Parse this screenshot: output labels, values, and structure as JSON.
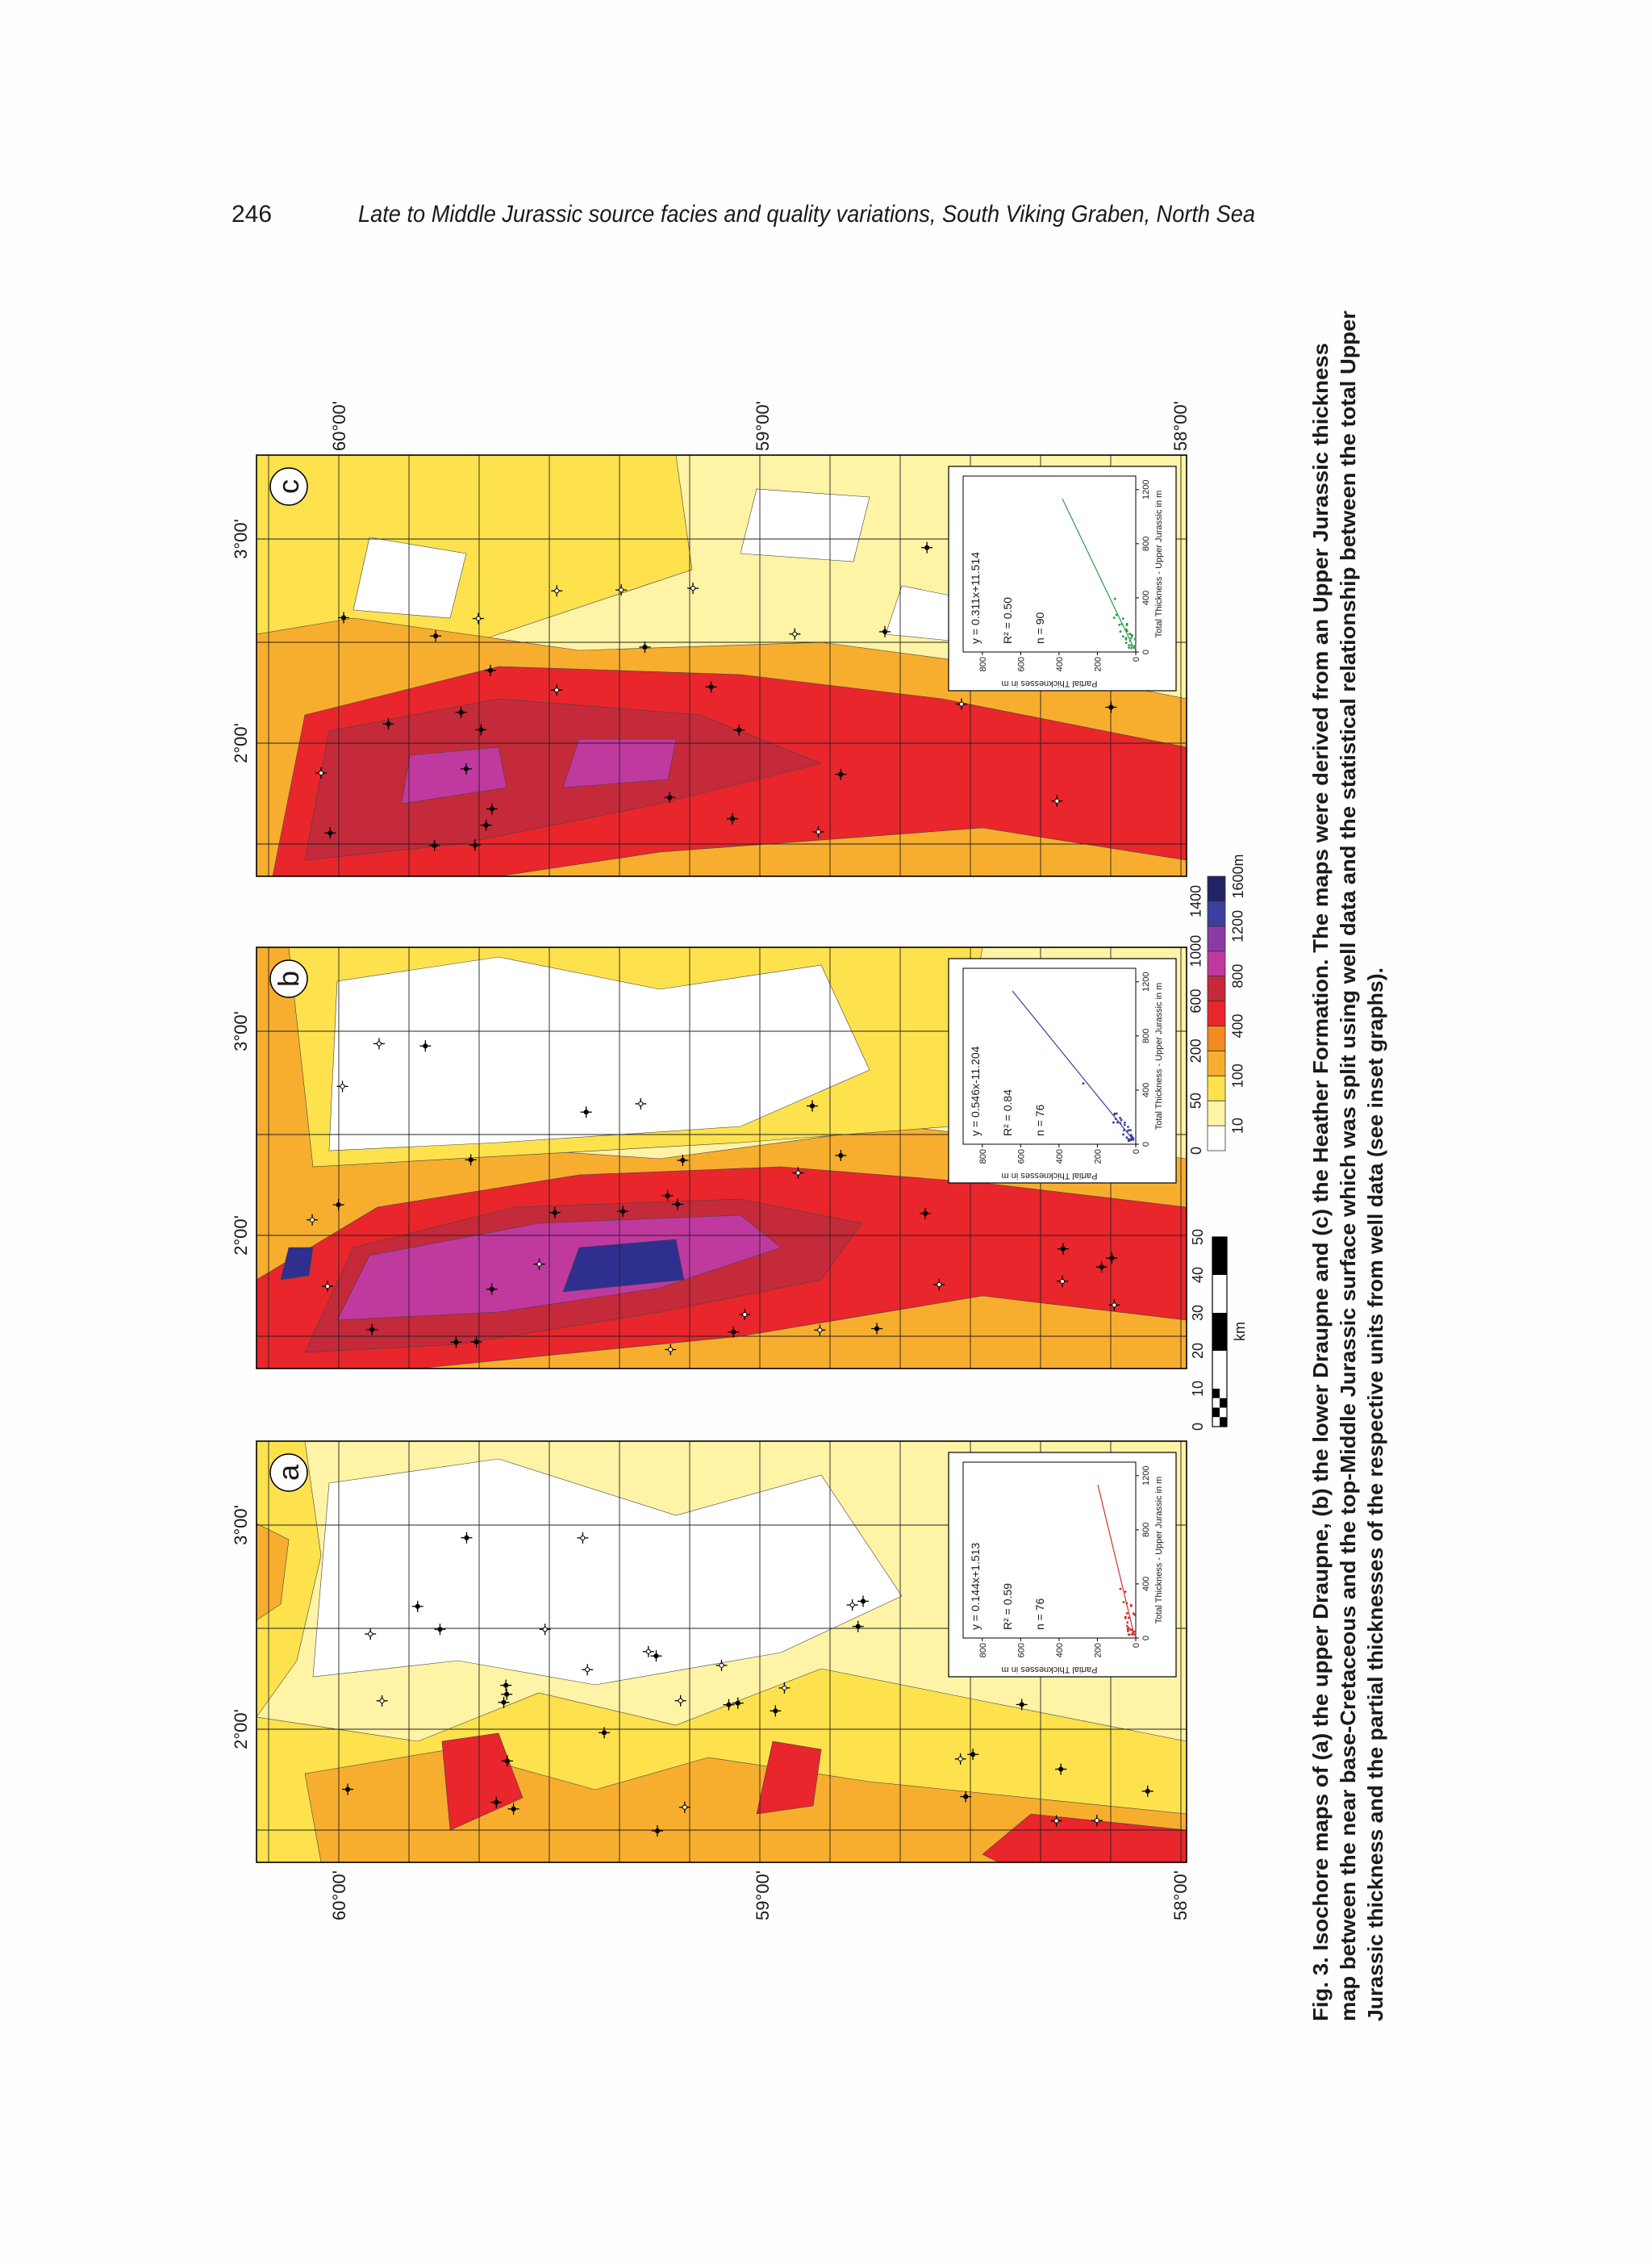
{
  "header": {
    "page_number": "246",
    "running_title": "Late to Middle Jurassic source facies and quality variations, South Viking Graben, North Sea"
  },
  "figure": {
    "panels": [
      {
        "label": "a",
        "latitude_labels": [
          "60°00'",
          "59°00'",
          "58°00'"
        ],
        "longitude_labels": [
          "3°00'",
          "2°00'"
        ],
        "inset": {
          "equation": "y = 0.144x+1.513",
          "r_squared": "R² = 0.59",
          "n": "n = 76",
          "y_label": "Partial Thicknesses in m",
          "x_label": "Total Thickness - Upper Jurassic in m",
          "y_ticks": [
            0,
            200,
            400,
            600,
            800
          ],
          "x_ticks": [
            0,
            400,
            800,
            1200
          ]
        }
      },
      {
        "label": "b",
        "longitude_labels": [
          "3°00'",
          "2°00'"
        ],
        "inset": {
          "equation": "y = 0.546x-11.204",
          "r_squared": "R² = 0.84",
          "n": "n = 76",
          "y_label": "Partial Thicknesses in m",
          "x_label": "Total Thickness - Upper Jurassic in m",
          "y_ticks": [
            0,
            200,
            400,
            600,
            800
          ],
          "x_ticks": [
            0,
            400,
            800,
            1200
          ]
        }
      },
      {
        "label": "c",
        "latitude_labels": [
          "60°00'",
          "59°00'",
          "58°00'"
        ],
        "longitude_labels": [
          "3°00'",
          "2°00'"
        ],
        "inset": {
          "equation": "y = 0.311x+11.514",
          "r_squared": "R² = 0.50",
          "n": "n = 90",
          "y_label": "Partial Thicknesses in m",
          "x_label": "Total Thickness - Upper Jurassic in m",
          "y_ticks": [
            0,
            200,
            400,
            600,
            800
          ],
          "x_ticks": [
            0,
            400,
            800,
            1200
          ]
        }
      }
    ],
    "color_legend": {
      "labels": [
        0,
        10,
        50,
        100,
        200,
        400,
        600,
        800,
        1000,
        1200,
        1400,
        "1600m"
      ]
    },
    "scale_bar": {
      "ticks": [
        0,
        10,
        20,
        30,
        40,
        50
      ],
      "unit": "km"
    }
  },
  "caption": {
    "lines": [
      "Fig. 3. Isochore maps of (a) the upper Draupne, (b) the lower Draupne and (c) the Heather Formation. The maps were derived from an Upper Jurassic thickness",
      "map between the near base-Cretaceous and the top-Middle Jurassic surface which was split using well data and the statistical relationship between the total Upper",
      "Jurassic thickness and the partial thicknesses of the respective units from well data (see inset graphs)."
    ]
  }
}
